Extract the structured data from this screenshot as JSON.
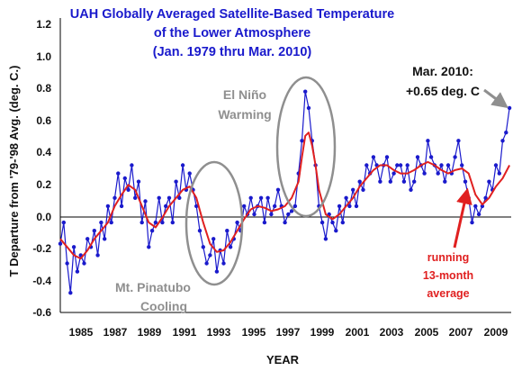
{
  "chart_data": {
    "type": "line",
    "title_lines": [
      "UAH Globally Averaged Satellite-Based Temperature",
      "of the Lower Atmosphere",
      "(Jan. 1979  thru Mar. 2010)"
    ],
    "xlabel": "YEAR",
    "ylabel": "T Departure from '79-'98 Avg. (deg. C.)",
    "xlim": [
      1983.8,
      2010.3
    ],
    "ylim": [
      -0.6,
      1.2
    ],
    "grid": false,
    "x_tick_labels": [
      "1985",
      "1987",
      "1989",
      "1991",
      "1993",
      "1995",
      "1997",
      "1999",
      "2001",
      "2003",
      "2005",
      "2007",
      "2009"
    ],
    "y_tick_labels": [
      "-0.6",
      "-0.4",
      "-0.2",
      "0.0",
      "0.2",
      "0.4",
      "0.6",
      "0.8",
      "1.0",
      "1.2"
    ],
    "series": [
      {
        "name": "",
        "color": "#1a1acc",
        "marker": "circle",
        "x": [
          1983.8,
          1984.0,
          1984.2,
          1984.4,
          1984.6,
          1984.8,
          1985.0,
          1985.2,
          1985.4,
          1985.6,
          1985.8,
          1986.0,
          1986.2,
          1986.4,
          1986.6,
          1986.8,
          1987.0,
          1987.2,
          1987.4,
          1987.6,
          1987.8,
          1988.0,
          1988.2,
          1988.4,
          1988.6,
          1988.8,
          1989.0,
          1989.2,
          1989.4,
          1989.6,
          1989.8,
          1990.0,
          1990.2,
          1990.4,
          1990.6,
          1990.8,
          1991.0,
          1991.2,
          1991.4,
          1991.6,
          1991.8,
          1992.0,
          1992.2,
          1992.4,
          1992.6,
          1992.8,
          1993.0,
          1993.2,
          1993.4,
          1993.6,
          1993.8,
          1994.0,
          1994.2,
          1994.4,
          1994.6,
          1994.8,
          1995.0,
          1995.2,
          1995.4,
          1995.6,
          1995.8,
          1996.0,
          1996.2,
          1996.4,
          1996.6,
          1996.8,
          1997.0,
          1997.2,
          1997.4,
          1997.6,
          1997.8,
          1998.0,
          1998.2,
          1998.4,
          1998.6,
          1998.8,
          1999.0,
          1999.2,
          1999.4,
          1999.6,
          1999.8,
          2000.0,
          2000.2,
          2000.4,
          2000.6,
          2000.8,
          2001.0,
          2001.2,
          2001.4,
          2001.6,
          2001.8,
          2002.0,
          2002.2,
          2002.4,
          2002.6,
          2002.8,
          2003.0,
          2003.2,
          2003.4,
          2003.6,
          2003.8,
          2004.0,
          2004.2,
          2004.4,
          2004.6,
          2004.8,
          2005.0,
          2005.2,
          2005.4,
          2005.6,
          2005.8,
          2006.0,
          2006.2,
          2006.4,
          2006.6,
          2006.8,
          2007.0,
          2007.2,
          2007.4,
          2007.6,
          2007.8,
          2008.0,
          2008.2,
          2008.4,
          2008.6,
          2008.8,
          2009.0,
          2009.2,
          2009.4,
          2009.6,
          2009.8,
          2010.0,
          2010.2
        ],
        "y": [
          -0.18,
          -0.05,
          -0.3,
          -0.48,
          -0.2,
          -0.35,
          -0.25,
          -0.3,
          -0.15,
          -0.2,
          -0.1,
          -0.25,
          -0.05,
          -0.15,
          0.05,
          -0.05,
          0.1,
          0.25,
          0.05,
          0.22,
          0.15,
          0.3,
          0.1,
          0.2,
          -0.05,
          0.08,
          -0.2,
          -0.1,
          -0.05,
          0.1,
          -0.05,
          0.05,
          0.1,
          -0.05,
          0.2,
          0.1,
          0.3,
          0.15,
          0.25,
          0.15,
          0.05,
          -0.1,
          -0.2,
          -0.3,
          -0.25,
          -0.15,
          -0.35,
          -0.22,
          -0.3,
          -0.1,
          -0.2,
          -0.15,
          -0.05,
          -0.1,
          0.05,
          0.0,
          0.1,
          0.0,
          0.05,
          0.1,
          -0.05,
          0.1,
          0.0,
          0.05,
          0.15,
          0.05,
          -0.05,
          0.0,
          0.02,
          0.05,
          0.25,
          0.45,
          0.75,
          0.65,
          0.45,
          0.3,
          0.05,
          -0.05,
          -0.15,
          0.0,
          -0.05,
          -0.1,
          0.05,
          -0.05,
          0.1,
          0.05,
          0.15,
          0.05,
          0.2,
          0.15,
          0.3,
          0.25,
          0.35,
          0.3,
          0.2,
          0.3,
          0.35,
          0.2,
          0.25,
          0.3,
          0.3,
          0.2,
          0.3,
          0.15,
          0.2,
          0.35,
          0.3,
          0.25,
          0.45,
          0.35,
          0.3,
          0.25,
          0.3,
          0.2,
          0.3,
          0.25,
          0.35,
          0.45,
          0.3,
          0.2,
          0.1,
          -0.05,
          0.05,
          0.0,
          0.05,
          0.1,
          0.2,
          0.15,
          0.3,
          0.25,
          0.45,
          0.5,
          0.65
        ]
      },
      {
        "name": "",
        "color": "#e02020",
        "marker": "none",
        "x": [
          1983.8,
          1984.2,
          1984.6,
          1985.0,
          1985.4,
          1985.8,
          1986.2,
          1986.6,
          1987.0,
          1987.4,
          1987.8,
          1988.2,
          1988.6,
          1989.0,
          1989.4,
          1989.8,
          1990.2,
          1990.6,
          1991.0,
          1991.4,
          1991.8,
          1992.2,
          1992.6,
          1993.0,
          1993.4,
          1993.8,
          1994.2,
          1994.6,
          1995.0,
          1995.4,
          1995.8,
          1996.2,
          1996.6,
          1997.0,
          1997.4,
          1997.8,
          1998.0,
          1998.2,
          1998.4,
          1998.6,
          1998.8,
          1999.0,
          1999.4,
          1999.8,
          2000.2,
          2000.6,
          2001.0,
          2001.4,
          2001.8,
          2002.2,
          2002.6,
          2003.0,
          2003.4,
          2003.8,
          2004.2,
          2004.6,
          2005.0,
          2005.4,
          2005.8,
          2006.2,
          2006.6,
          2007.0,
          2007.4,
          2007.8,
          2008.2,
          2008.6,
          2009.0,
          2009.4,
          2009.8,
          2010.2
        ],
        "y": [
          -0.15,
          -0.2,
          -0.25,
          -0.27,
          -0.22,
          -0.15,
          -0.1,
          -0.05,
          0.05,
          0.12,
          0.18,
          0.15,
          0.05,
          -0.05,
          -0.08,
          -0.02,
          0.05,
          0.1,
          0.15,
          0.17,
          0.1,
          -0.05,
          -0.18,
          -0.23,
          -0.22,
          -0.17,
          -0.1,
          -0.03,
          0.03,
          0.05,
          0.04,
          0.02,
          0.03,
          0.05,
          0.1,
          0.2,
          0.35,
          0.48,
          0.5,
          0.42,
          0.3,
          0.15,
          0.0,
          -0.03,
          0.0,
          0.05,
          0.1,
          0.17,
          0.22,
          0.27,
          0.3,
          0.3,
          0.27,
          0.25,
          0.25,
          0.27,
          0.3,
          0.32,
          0.3,
          0.27,
          0.25,
          0.27,
          0.28,
          0.25,
          0.12,
          0.06,
          0.1,
          0.17,
          0.22,
          0.3
        ]
      }
    ],
    "annotations": {
      "el_nino": [
        "El Niño",
        "Warming"
      ],
      "pinatubo": [
        "Mt. Pinatubo",
        "Cooling"
      ],
      "latest": [
        "Mar. 2010:",
        "+0.65 deg. C"
      ],
      "running": [
        "running",
        "13-month",
        "average"
      ]
    }
  }
}
